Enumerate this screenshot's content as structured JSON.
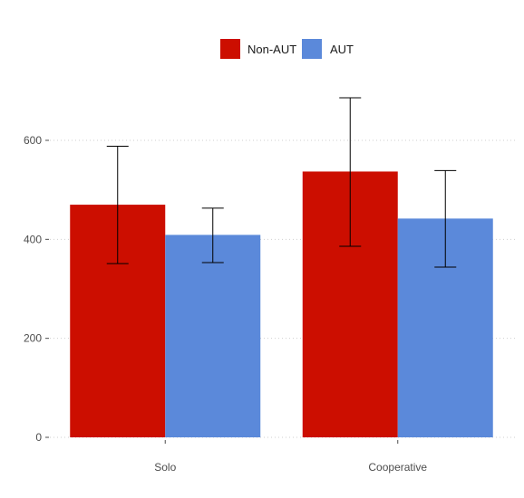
{
  "chart_data": {
    "type": "bar",
    "categories": [
      "Solo",
      "Cooperative"
    ],
    "series": [
      {
        "name": "Non-AUT",
        "color": "#cc0e00",
        "values": [
          470,
          537
        ],
        "error_low": [
          351,
          386
        ],
        "error_high": [
          588,
          686
        ]
      },
      {
        "name": "AUT",
        "color": "#5b89da",
        "values": [
          409,
          442
        ],
        "error_low": [
          353,
          344
        ],
        "error_high": [
          463,
          539
        ]
      }
    ],
    "y_ticks": [
      0,
      200,
      400,
      600
    ],
    "ylim": [
      0,
      720
    ],
    "grid": "horizontal dotted",
    "legend_position": "top",
    "xlabel": "",
    "ylabel": ""
  }
}
